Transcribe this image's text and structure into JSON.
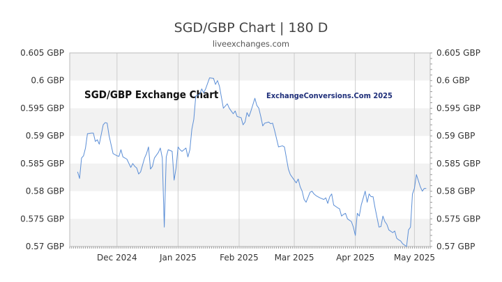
{
  "chart_data": {
    "type": "line",
    "title": "SGD/GBP Chart | 180 D",
    "subtitle": "liveexchanges.com",
    "watermarks": [
      "SGD/GBP Exchange Chart",
      "ExchangeConversions.Com 2025"
    ],
    "xlabel": "",
    "ylabel": "",
    "ylim": [
      0.57,
      0.605
    ],
    "y_ticks": [
      0.57,
      0.575,
      0.58,
      0.585,
      0.59,
      0.595,
      0.6,
      0.605
    ],
    "y_tick_labels": [
      "0.57 GBP",
      "0.575 GBP",
      "0.58 GBP",
      "0.585 GBP",
      "0.59 GBP",
      "0.595 GBP",
      "0.6 GBP",
      "0.605 GBP"
    ],
    "x_range": [
      "2024-11-07",
      "2025-05-09"
    ],
    "x_ticks": [
      {
        "date": "2024-12-01",
        "label": "Dec 2024"
      },
      {
        "date": "2025-01-01",
        "label": "Jan 2025"
      },
      {
        "date": "2025-02-01",
        "label": "Feb 2025"
      },
      {
        "date": "2025-03-01",
        "label": "Mar 2025"
      },
      {
        "date": "2025-04-01",
        "label": "Apr 2025"
      },
      {
        "date": "2025-05-01",
        "label": "May 2025"
      }
    ],
    "grid": true,
    "colors": {
      "line": "#5b8ed6",
      "band": "#f2f2f2",
      "grid": "#cccccc",
      "axis": "#999999"
    },
    "series": [
      {
        "values": [
          [
            "2024-11-11",
            0.5835
          ],
          [
            "2024-11-12",
            0.5823
          ],
          [
            "2024-11-13",
            0.586
          ],
          [
            "2024-11-14",
            0.5864
          ],
          [
            "2024-11-15",
            0.5878
          ],
          [
            "2024-11-16",
            0.5904
          ],
          [
            "2024-11-18",
            0.5905
          ],
          [
            "2024-11-19",
            0.5905
          ],
          [
            "2024-11-20",
            0.589
          ],
          [
            "2024-11-21",
            0.5893
          ],
          [
            "2024-11-22",
            0.5885
          ],
          [
            "2024-11-24",
            0.592
          ],
          [
            "2024-11-25",
            0.5924
          ],
          [
            "2024-11-26",
            0.5923
          ],
          [
            "2024-11-27",
            0.59
          ],
          [
            "2024-11-28",
            0.5884
          ],
          [
            "2024-11-29",
            0.5868
          ],
          [
            "2024-12-01",
            0.5864
          ],
          [
            "2024-12-02",
            0.5863
          ],
          [
            "2024-12-03",
            0.5875
          ],
          [
            "2024-12-04",
            0.5862
          ],
          [
            "2024-12-05",
            0.586
          ],
          [
            "2024-12-06",
            0.5858
          ],
          [
            "2024-12-08",
            0.5843
          ],
          [
            "2024-12-09",
            0.585
          ],
          [
            "2024-12-10",
            0.5845
          ],
          [
            "2024-12-11",
            0.5842
          ],
          [
            "2024-12-12",
            0.5831
          ],
          [
            "2024-12-13",
            0.5835
          ],
          [
            "2024-12-15",
            0.586
          ],
          [
            "2024-12-16",
            0.5868
          ],
          [
            "2024-12-17",
            0.588
          ],
          [
            "2024-12-18",
            0.584
          ],
          [
            "2024-12-19",
            0.5845
          ],
          [
            "2024-12-20",
            0.586
          ],
          [
            "2024-12-22",
            0.587
          ],
          [
            "2024-12-23",
            0.5878
          ],
          [
            "2024-12-24",
            0.586
          ],
          [
            "2024-12-25",
            0.5735
          ],
          [
            "2024-12-26",
            0.5862
          ],
          [
            "2024-12-27",
            0.5875
          ],
          [
            "2024-12-29",
            0.5872
          ],
          [
            "2024-12-30",
            0.582
          ],
          [
            "2024-12-31",
            0.5842
          ],
          [
            "2025-01-01",
            0.588
          ],
          [
            "2025-01-02",
            0.5875
          ],
          [
            "2025-01-03",
            0.5872
          ],
          [
            "2025-01-05",
            0.5878
          ],
          [
            "2025-01-06",
            0.5862
          ],
          [
            "2025-01-07",
            0.5875
          ],
          [
            "2025-01-08",
            0.5912
          ],
          [
            "2025-01-09",
            0.593
          ],
          [
            "2025-01-10",
            0.5972
          ],
          [
            "2025-01-12",
            0.5975
          ],
          [
            "2025-01-13",
            0.5985
          ],
          [
            "2025-01-14",
            0.5978
          ],
          [
            "2025-01-15",
            0.5985
          ],
          [
            "2025-01-16",
            0.5995
          ],
          [
            "2025-01-17",
            0.6005
          ],
          [
            "2025-01-19",
            0.6004
          ],
          [
            "2025-01-20",
            0.5993
          ],
          [
            "2025-01-21",
            0.6
          ],
          [
            "2025-01-22",
            0.599
          ],
          [
            "2025-01-23",
            0.597
          ],
          [
            "2025-01-24",
            0.595
          ],
          [
            "2025-01-26",
            0.5958
          ],
          [
            "2025-01-27",
            0.595
          ],
          [
            "2025-01-28",
            0.5945
          ],
          [
            "2025-01-29",
            0.594
          ],
          [
            "2025-01-30",
            0.5945
          ],
          [
            "2025-01-31",
            0.5935
          ],
          [
            "2025-02-02",
            0.5933
          ],
          [
            "2025-02-03",
            0.592
          ],
          [
            "2025-02-04",
            0.5925
          ],
          [
            "2025-02-05",
            0.5942
          ],
          [
            "2025-02-06",
            0.5935
          ],
          [
            "2025-02-07",
            0.5945
          ],
          [
            "2025-02-09",
            0.5968
          ],
          [
            "2025-02-10",
            0.5955
          ],
          [
            "2025-02-11",
            0.595
          ],
          [
            "2025-02-12",
            0.5935
          ],
          [
            "2025-02-13",
            0.5918
          ],
          [
            "2025-02-14",
            0.5923
          ],
          [
            "2025-02-16",
            0.5925
          ],
          [
            "2025-02-17",
            0.5922
          ],
          [
            "2025-02-18",
            0.5923
          ],
          [
            "2025-02-19",
            0.591
          ],
          [
            "2025-02-20",
            0.5895
          ],
          [
            "2025-02-21",
            0.588
          ],
          [
            "2025-02-23",
            0.5882
          ],
          [
            "2025-02-24",
            0.588
          ],
          [
            "2025-02-25",
            0.586
          ],
          [
            "2025-02-26",
            0.584
          ],
          [
            "2025-02-27",
            0.583
          ],
          [
            "2025-02-28",
            0.5825
          ],
          [
            "2025-03-02",
            0.5815
          ],
          [
            "2025-03-03",
            0.5822
          ],
          [
            "2025-03-04",
            0.5808
          ],
          [
            "2025-03-05",
            0.58
          ],
          [
            "2025-03-06",
            0.5785
          ],
          [
            "2025-03-07",
            0.578
          ],
          [
            "2025-03-09",
            0.5798
          ],
          [
            "2025-03-10",
            0.58
          ],
          [
            "2025-03-11",
            0.5795
          ],
          [
            "2025-03-12",
            0.5792
          ],
          [
            "2025-03-13",
            0.579
          ],
          [
            "2025-03-14",
            0.5788
          ],
          [
            "2025-03-16",
            0.5785
          ],
          [
            "2025-03-17",
            0.5788
          ],
          [
            "2025-03-18",
            0.5778
          ],
          [
            "2025-03-19",
            0.579
          ],
          [
            "2025-03-20",
            0.5795
          ],
          [
            "2025-03-21",
            0.5775
          ],
          [
            "2025-03-23",
            0.577
          ],
          [
            "2025-03-24",
            0.5768
          ],
          [
            "2025-03-25",
            0.5755
          ],
          [
            "2025-03-26",
            0.5758
          ],
          [
            "2025-03-27",
            0.576
          ],
          [
            "2025-03-28",
            0.575
          ],
          [
            "2025-03-30",
            0.5745
          ],
          [
            "2025-03-31",
            0.5735
          ],
          [
            "2025-04-01",
            0.572
          ],
          [
            "2025-04-02",
            0.576
          ],
          [
            "2025-04-03",
            0.5755
          ],
          [
            "2025-04-04",
            0.5775
          ],
          [
            "2025-04-06",
            0.58
          ],
          [
            "2025-04-07",
            0.578
          ],
          [
            "2025-04-08",
            0.5795
          ],
          [
            "2025-04-09",
            0.579
          ],
          [
            "2025-04-10",
            0.579
          ],
          [
            "2025-04-11",
            0.577
          ],
          [
            "2025-04-13",
            0.5735
          ],
          [
            "2025-04-14",
            0.5736
          ],
          [
            "2025-04-15",
            0.5755
          ],
          [
            "2025-04-16",
            0.5745
          ],
          [
            "2025-04-17",
            0.574
          ],
          [
            "2025-04-18",
            0.573
          ],
          [
            "2025-04-20",
            0.5725
          ],
          [
            "2025-04-21",
            0.5728
          ],
          [
            "2025-04-22",
            0.5715
          ],
          [
            "2025-04-23",
            0.5712
          ],
          [
            "2025-04-24",
            0.571
          ],
          [
            "2025-04-25",
            0.5705
          ],
          [
            "2025-04-27",
            0.57
          ],
          [
            "2025-04-28",
            0.573
          ],
          [
            "2025-04-29",
            0.5735
          ],
          [
            "2025-04-30",
            0.5795
          ],
          [
            "2025-05-01",
            0.5805
          ],
          [
            "2025-05-02",
            0.583
          ],
          [
            "2025-05-04",
            0.5808
          ],
          [
            "2025-05-05",
            0.58
          ],
          [
            "2025-05-06",
            0.5805
          ],
          [
            "2025-05-07",
            0.5805
          ]
        ]
      }
    ]
  }
}
